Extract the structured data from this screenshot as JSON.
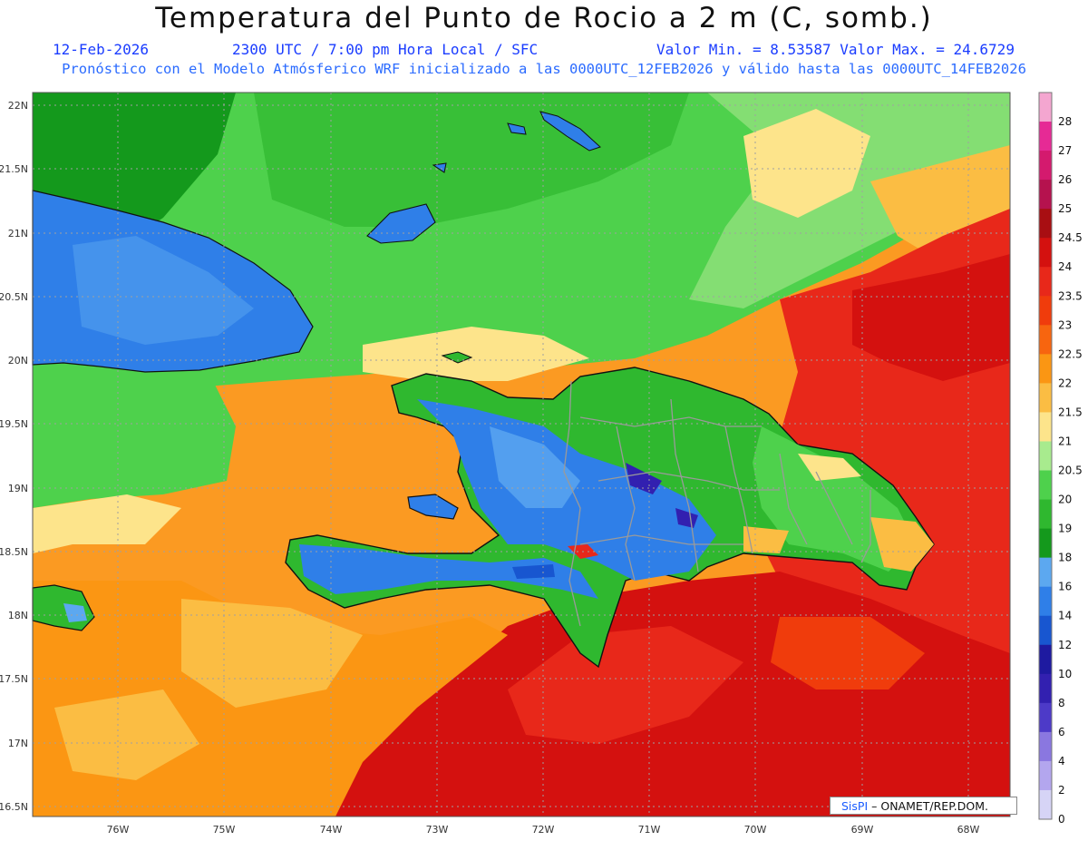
{
  "title": "Temperatura del Punto de Rocio a 2 m (C, somb.)",
  "date": "12-Feb-2026",
  "time_line": "2300 UTC / 7:00 pm Hora Local / SFC",
  "min_max": "Valor Min. = 8.53587  Valor Max. = 24.6729",
  "forecast_line": "Pronóstico con el Modelo Atmósferico WRF inicializado a las 0000UTC_12FEB2026 y válido hasta las  0000UTC_14FEB2026",
  "lat_labels": [
    "22N",
    "21.5N",
    "21N",
    "20.5N",
    "20N",
    "19.5N",
    "19N",
    "18.5N",
    "18N",
    "17.5N",
    "17N",
    "16.5N"
  ],
  "lon_labels": [
    "76W",
    "75W",
    "74W",
    "73W",
    "72W",
    "71W",
    "70W",
    "69W",
    "68W"
  ],
  "colorbar": {
    "labels": [
      "28",
      "27",
      "26",
      "25",
      "24.5",
      "24",
      "23.5",
      "23",
      "22.5",
      "22",
      "21.5",
      "21",
      "20.5",
      "20",
      "19",
      "18",
      "16",
      "14",
      "12",
      "10",
      "8",
      "6",
      "4",
      "2",
      "0"
    ],
    "colors": [
      "#f4a6d0",
      "#e62a95",
      "#d41a6e",
      "#b5124e",
      "#a80e12",
      "#d4110f",
      "#e8281a",
      "#f03c0c",
      "#f7650f",
      "#fb9613",
      "#fbbd43",
      "#fde48b",
      "#a8eb8e",
      "#4ed14c",
      "#2fb82f",
      "#14991c",
      "#5ca8f0",
      "#2f7fe8",
      "#1856d0",
      "#1e1aa0",
      "#3220b0",
      "#4d3ac8",
      "#8a77e0",
      "#b3a6ee",
      "#d6d4f6"
    ]
  },
  "credit": {
    "brand": "SisPI",
    "text": " – ONAMET/REP.DOM."
  }
}
